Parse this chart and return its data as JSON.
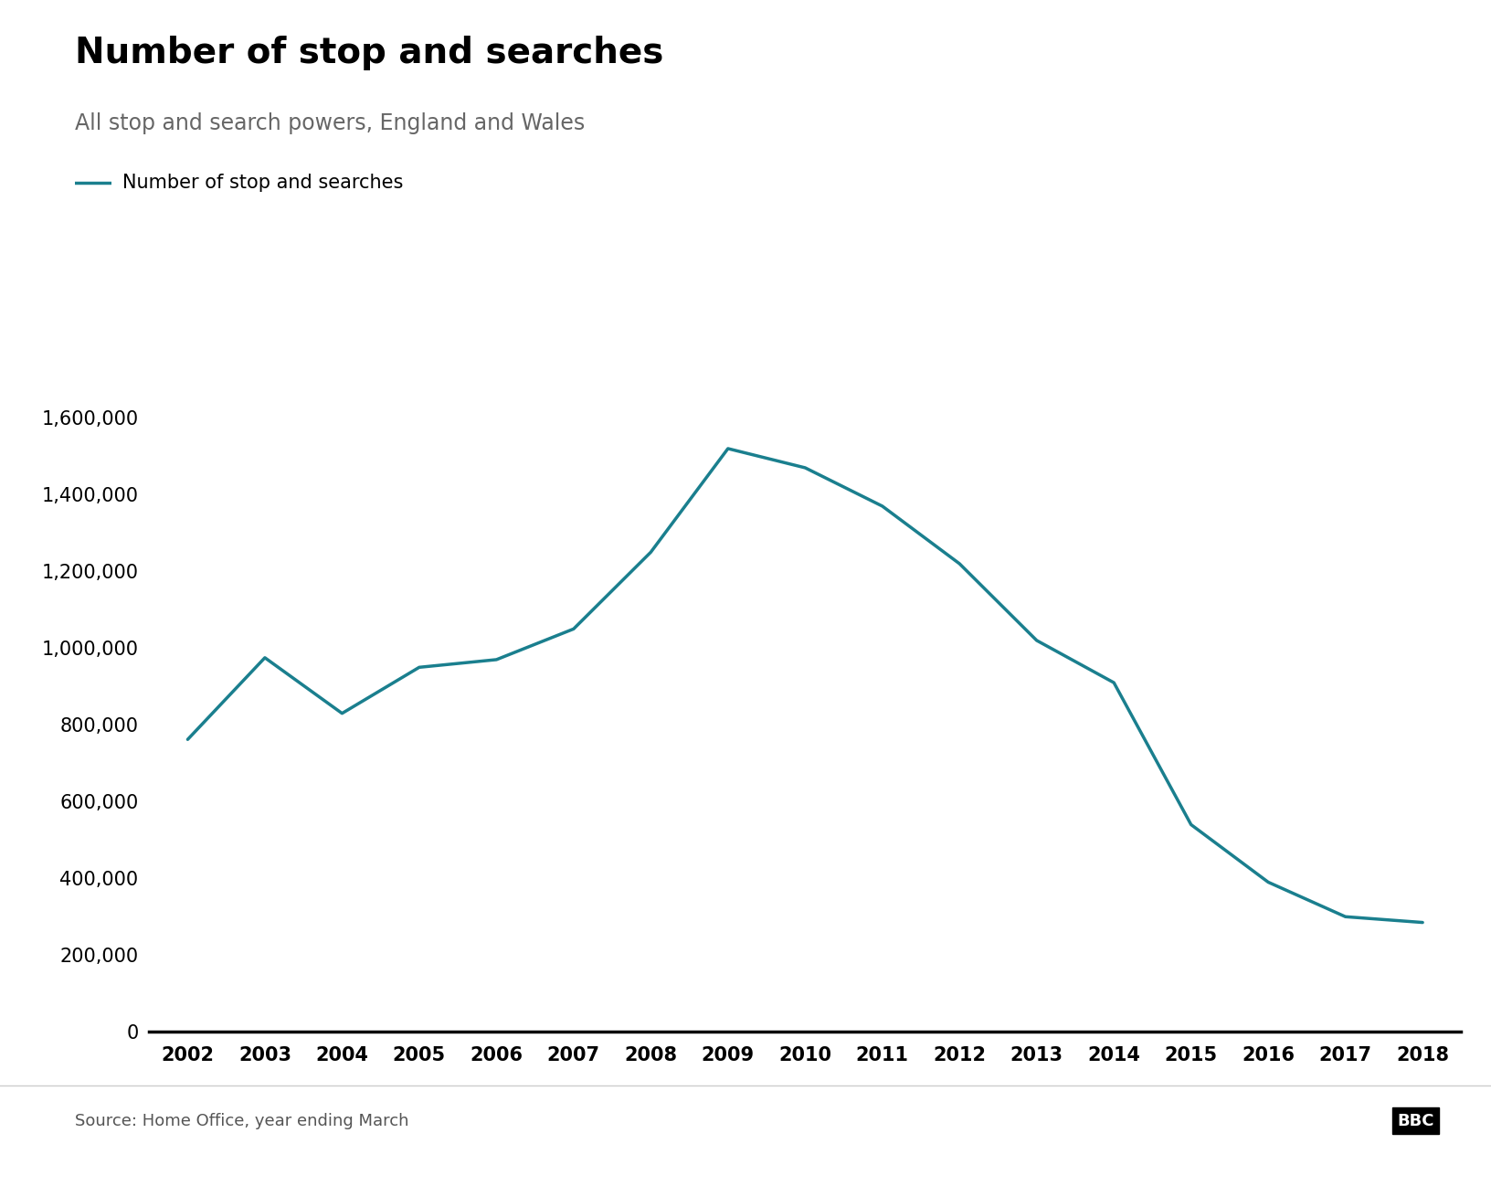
{
  "title": "Number of stop and searches",
  "subtitle": "All stop and search powers, England and Wales",
  "legend_label": "Number of stop and searches",
  "source": "Source: Home Office, year ending March",
  "line_color": "#1a7f8e",
  "years": [
    2002,
    2003,
    2004,
    2005,
    2006,
    2007,
    2008,
    2009,
    2010,
    2011,
    2012,
    2013,
    2014,
    2015,
    2016,
    2017,
    2018
  ],
  "values": [
    762000,
    975000,
    830000,
    950000,
    970000,
    1050000,
    1250000,
    1520000,
    1470000,
    1370000,
    1220000,
    1020000,
    910000,
    540000,
    390000,
    300000,
    285000
  ],
  "ylim": [
    0,
    1700000
  ],
  "yticks": [
    0,
    200000,
    400000,
    600000,
    800000,
    1000000,
    1200000,
    1400000,
    1600000
  ],
  "background_color": "#ffffff",
  "title_fontsize": 28,
  "subtitle_fontsize": 17,
  "legend_fontsize": 15,
  "tick_fontsize": 15,
  "source_fontsize": 13,
  "line_width": 2.5
}
